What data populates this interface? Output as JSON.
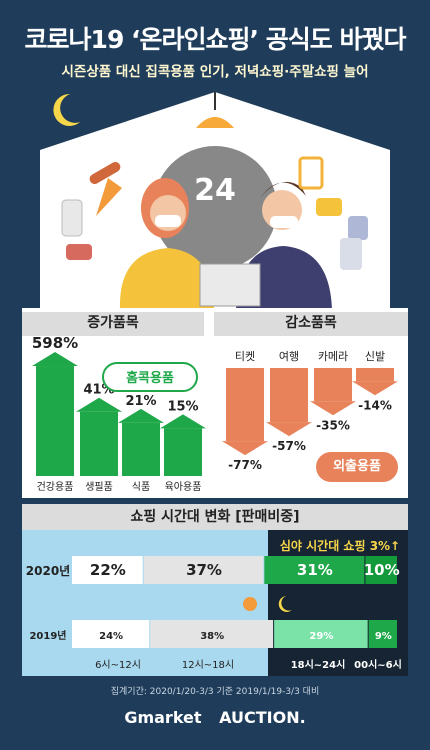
{
  "title": "코로나19 ‘온라인쇼핑’ 공식도 바꿨다",
  "subtitle": "시즌상품 대신 집콕용품 인기, 저녁쇼핑·주말쇼핑 늘어",
  "clock_number": "24",
  "colors": {
    "background": "#1f3d5b",
    "increase": "#1fa84a",
    "decrease": "#e8825a",
    "night": "#162433",
    "timeband": "#a9d9ef"
  },
  "chart_data": [
    {
      "type": "bar",
      "title": "증가품목",
      "categories": [
        "건강용품",
        "생필품",
        "식품",
        "육아용품"
      ],
      "values": [
        598,
        41,
        21,
        15
      ],
      "labels": [
        "598%",
        "41%",
        "21%",
        "15%"
      ],
      "tag": "홈콕용품"
    },
    {
      "type": "bar",
      "title": "감소품목",
      "categories": [
        "티켓",
        "여행",
        "카메라",
        "신발"
      ],
      "values": [
        -77,
        -57,
        -35,
        -14
      ],
      "labels": [
        "-77%",
        "-57%",
        "-35%",
        "-14%"
      ],
      "tag": "외출용품"
    },
    {
      "type": "bar",
      "title": "쇼핑 시간대 변화 [판매비중]",
      "annotation": "심야 시간대 쇼핑 3%↑",
      "categories": [
        "6시~12시",
        "12시~18시",
        "18시~24시",
        "00시~6시"
      ],
      "series": [
        {
          "name": "2020년",
          "values": [
            22,
            37,
            31,
            10
          ],
          "labels": [
            "22%",
            "37%",
            "31%",
            "10%"
          ]
        },
        {
          "name": "2019년",
          "values": [
            24,
            38,
            29,
            9
          ],
          "labels": [
            "24%",
            "38%",
            "29%",
            "9%"
          ]
        }
      ]
    }
  ],
  "footnote": "집계기간: 2020/1/20-3/3 기준 2019/1/19-3/3 대비",
  "logos": {
    "gmarket": "Gmarket",
    "auction": "AUCTION."
  }
}
